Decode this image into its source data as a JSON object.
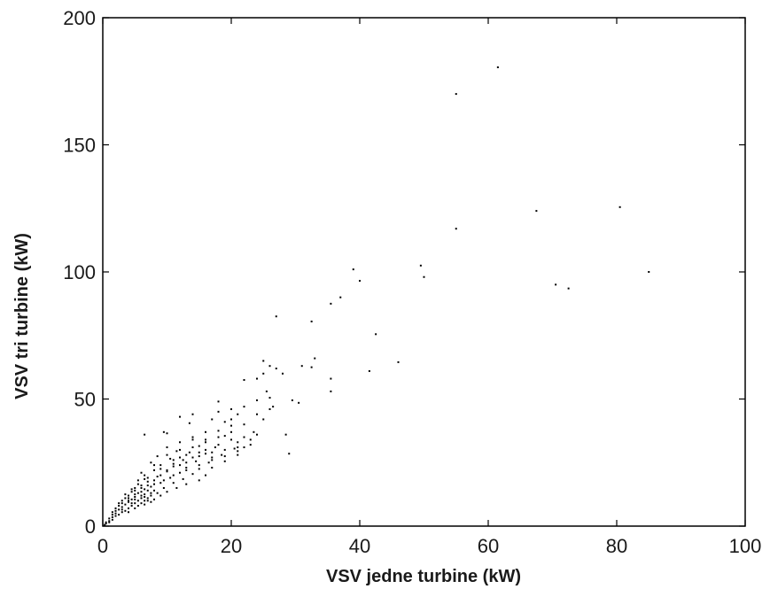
{
  "chart_data": {
    "type": "scatter",
    "title": "",
    "xlabel": "VSV jedne turbine (kW)",
    "ylabel": "VSV tri turbine (kW)",
    "xlim": [
      0,
      100
    ],
    "ylim": [
      0,
      200
    ],
    "xticks": [
      0,
      20,
      40,
      60,
      80,
      100
    ],
    "yticks": [
      0,
      50,
      100,
      150,
      200
    ],
    "xtick_labels": [
      "0",
      "20",
      "40",
      "60",
      "80",
      "100"
    ],
    "ytick_labels": [
      "0",
      "50",
      "100",
      "150",
      "200"
    ],
    "grid": false,
    "legend": "none",
    "marker_color": "#000000",
    "series": [
      {
        "points": [
          [
            61.5,
            180.5
          ],
          [
            55,
            170
          ],
          [
            67.5,
            124
          ],
          [
            80.5,
            125.5
          ],
          [
            55,
            117
          ],
          [
            85,
            100
          ],
          [
            70.5,
            95
          ],
          [
            72.5,
            93.5
          ],
          [
            39,
            101
          ],
          [
            49.5,
            102.5
          ],
          [
            40,
            96.5
          ],
          [
            50,
            98
          ],
          [
            37,
            90
          ],
          [
            35.5,
            87.5
          ],
          [
            27,
            82.5
          ],
          [
            32.5,
            80.5
          ],
          [
            42.5,
            75.5
          ],
          [
            46,
            64.5
          ],
          [
            41.5,
            61
          ],
          [
            25,
            65
          ],
          [
            26,
            63
          ],
          [
            31,
            63
          ],
          [
            32.5,
            62.5
          ],
          [
            25,
            60
          ],
          [
            22,
            57.5
          ],
          [
            35.5,
            58
          ],
          [
            35.5,
            53
          ],
          [
            25.5,
            53
          ],
          [
            26,
            50.5
          ],
          [
            24,
            49.5
          ],
          [
            29.5,
            49.5
          ],
          [
            30.5,
            48.5
          ],
          [
            26.5,
            47
          ],
          [
            18,
            49
          ],
          [
            20,
            46
          ],
          [
            12,
            43
          ],
          [
            14,
            44
          ],
          [
            17,
            42
          ],
          [
            13.5,
            40.5
          ],
          [
            22,
            40
          ],
          [
            25,
            42
          ],
          [
            23.5,
            37
          ],
          [
            20,
            39.5
          ],
          [
            18,
            37.5
          ],
          [
            9.5,
            37
          ],
          [
            6.5,
            36
          ],
          [
            10,
            36.5
          ],
          [
            14,
            35
          ],
          [
            16,
            34
          ],
          [
            19,
            35.5
          ],
          [
            21,
            33
          ],
          [
            24,
            36
          ],
          [
            28.5,
            36
          ],
          [
            12,
            33
          ],
          [
            15,
            31.5
          ],
          [
            17.5,
            31
          ],
          [
            20.5,
            30.5
          ],
          [
            22,
            31
          ],
          [
            10,
            31
          ],
          [
            11.5,
            29.5
          ],
          [
            13.5,
            29
          ],
          [
            16,
            28.5
          ],
          [
            18.5,
            28
          ],
          [
            21,
            28
          ],
          [
            29,
            28.5
          ],
          [
            8.5,
            27.5
          ],
          [
            10.5,
            26.5
          ],
          [
            12.5,
            26
          ],
          [
            14.5,
            25.5
          ],
          [
            16.5,
            25
          ],
          [
            19,
            25.5
          ],
          [
            7.5,
            25
          ],
          [
            9,
            24
          ],
          [
            11,
            23.5
          ],
          [
            13,
            23
          ],
          [
            15,
            22.5
          ],
          [
            17,
            23
          ],
          [
            8,
            22
          ],
          [
            10,
            21.5
          ],
          [
            12,
            21
          ],
          [
            14,
            20.5
          ],
          [
            16,
            20
          ],
          [
            6.5,
            20
          ],
          [
            8.5,
            19.5
          ],
          [
            10.5,
            19
          ],
          [
            12.5,
            18.5
          ],
          [
            15,
            18
          ],
          [
            5.5,
            18
          ],
          [
            7,
            17.5
          ],
          [
            9,
            17
          ],
          [
            11,
            17
          ],
          [
            13,
            16.5
          ],
          [
            6,
            16
          ],
          [
            7.5,
            15.5
          ],
          [
            9.5,
            15
          ],
          [
            11.5,
            15
          ],
          [
            5,
            15
          ],
          [
            6.5,
            14.5
          ],
          [
            8,
            14
          ],
          [
            10,
            13.5
          ],
          [
            4.5,
            13.5
          ],
          [
            5.5,
            13
          ],
          [
            6.5,
            12.5
          ],
          [
            7.5,
            12
          ],
          [
            9,
            12
          ],
          [
            4,
            12
          ],
          [
            5,
            11.5
          ],
          [
            6,
            11
          ],
          [
            7,
            11
          ],
          [
            8,
            10.5
          ],
          [
            3.5,
            11
          ],
          [
            4.5,
            10.5
          ],
          [
            5.5,
            10
          ],
          [
            6.5,
            10
          ],
          [
            7.5,
            9.5
          ],
          [
            3,
            10
          ],
          [
            4,
            9.5
          ],
          [
            5,
            9
          ],
          [
            6,
            9
          ],
          [
            3.5,
            8.5
          ],
          [
            4.5,
            8
          ],
          [
            5.5,
            8
          ],
          [
            2.5,
            8
          ],
          [
            3,
            7.5
          ],
          [
            4,
            7
          ],
          [
            5,
            7
          ],
          [
            2.5,
            6.5
          ],
          [
            3.5,
            6
          ],
          [
            2,
            6
          ],
          [
            3,
            5.5
          ],
          [
            2,
            5
          ],
          [
            2.5,
            4.5
          ],
          [
            1.5,
            4.5
          ],
          [
            2,
            4
          ],
          [
            1.5,
            3.5
          ],
          [
            1,
            3
          ],
          [
            1.5,
            2.5
          ],
          [
            1,
            2
          ],
          [
            0.5,
            1.5
          ],
          [
            1,
            1.5
          ],
          [
            0.5,
            1
          ],
          [
            0.3,
            0.5
          ],
          [
            4.5,
            14.5
          ],
          [
            6,
            13.5
          ],
          [
            5,
            12.5
          ],
          [
            6.5,
            11.5
          ],
          [
            7.5,
            13
          ],
          [
            4,
            10
          ],
          [
            6.5,
            8.5
          ],
          [
            8,
            16.5
          ],
          [
            9.5,
            18
          ],
          [
            11,
            20
          ],
          [
            13,
            22
          ],
          [
            15,
            24
          ],
          [
            17,
            26
          ],
          [
            19,
            27.5
          ],
          [
            21,
            29.5
          ],
          [
            14,
            27
          ],
          [
            16,
            30
          ],
          [
            18,
            32
          ],
          [
            20,
            34
          ],
          [
            22,
            35
          ],
          [
            23,
            32
          ],
          [
            19,
            30
          ],
          [
            17,
            29
          ],
          [
            15,
            27.5
          ],
          [
            13,
            25
          ],
          [
            11,
            24.5
          ],
          [
            9,
            22.5
          ],
          [
            7,
            19
          ],
          [
            12,
            27
          ],
          [
            14,
            31
          ],
          [
            16,
            33
          ],
          [
            18,
            35
          ],
          [
            20,
            37
          ],
          [
            15,
            29
          ],
          [
            13,
            28
          ],
          [
            11,
            26
          ],
          [
            9,
            20
          ],
          [
            7,
            16
          ],
          [
            5,
            14
          ],
          [
            4,
            11
          ],
          [
            3,
            9
          ],
          [
            6,
            15
          ],
          [
            8,
            18
          ],
          [
            10,
            22
          ],
          [
            12,
            24
          ],
          [
            17,
            27
          ],
          [
            21,
            31
          ],
          [
            23,
            34
          ],
          [
            24,
            44
          ],
          [
            26,
            46
          ],
          [
            19,
            41
          ],
          [
            16,
            37
          ],
          [
            14,
            34
          ],
          [
            12,
            30
          ],
          [
            10,
            28
          ],
          [
            8,
            24
          ],
          [
            6,
            21
          ],
          [
            27,
            62
          ],
          [
            28,
            60
          ],
          [
            33,
            66
          ],
          [
            24,
            58
          ],
          [
            21,
            44
          ],
          [
            22,
            47
          ],
          [
            18,
            45
          ],
          [
            20,
            42
          ],
          [
            5.5,
            16.5
          ],
          [
            6.5,
            18.5
          ],
          [
            7,
            14
          ],
          [
            8.5,
            13
          ],
          [
            3.5,
            12.5
          ],
          [
            4.5,
            9
          ],
          [
            5,
            10.5
          ],
          [
            6,
            12
          ],
          [
            7,
            10
          ],
          [
            2.5,
            9
          ],
          [
            3,
            6.5
          ],
          [
            4,
            5.5
          ],
          [
            2,
            7
          ],
          [
            1.5,
            5.5
          ]
        ]
      }
    ]
  }
}
